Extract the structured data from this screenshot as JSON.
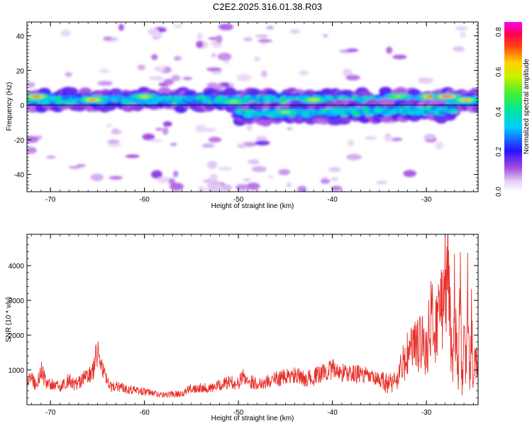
{
  "title": "C2E2.2025.316.01.38.R03",
  "chart_data": [
    {
      "type": "heatmap",
      "panel": "spectrogram",
      "xlabel": "Height of straight line (km)",
      "ylabel": "Frequency (Hz)",
      "xlim": [
        -72.5,
        -24.5
      ],
      "ylim": [
        -50,
        48
      ],
      "xticks": [
        -70,
        -60,
        -50,
        -40,
        -30
      ],
      "xtick_labels": [
        "-70",
        "-60",
        "-50",
        "-40",
        "-30"
      ],
      "yticks": [
        -40,
        -20,
        0,
        20,
        40
      ],
      "ytick_labels": [
        "-40",
        "-20",
        "0",
        "20",
        "40"
      ],
      "colorbar": {
        "label": "Normalized spectral amplitude",
        "range": [
          0,
          0.85
        ],
        "ticks": [
          0.0,
          0.2,
          0.4,
          0.6,
          0.8
        ],
        "tick_labels": [
          "0.0",
          "0.2",
          "0.4",
          "0.6",
          "0.8"
        ],
        "colormap": "rainbow (white-violet-blue-cyan-green-yellow-red-magenta)"
      },
      "ridges": [
        {
          "name": "main band",
          "x_start": -72.5,
          "x_end": -24.5,
          "freq_start": 3,
          "freq_end": 3
        },
        {
          "name": "lower branch",
          "x_start": -50,
          "x_end": -27,
          "freq_start": -5,
          "freq_end": -3
        }
      ],
      "peaks": [
        {
          "x": -71.5,
          "freq": 5,
          "amplitude": 0.78
        },
        {
          "x": -65.5,
          "freq": 3,
          "amplitude": 0.72
        },
        {
          "x": -60,
          "freq": 5,
          "amplitude": 0.6
        },
        {
          "x": -50.5,
          "freq": 2,
          "amplitude": 0.55
        },
        {
          "x": -45,
          "freq": -4,
          "amplitude": 0.55
        },
        {
          "x": -42,
          "freq": 3,
          "amplitude": 0.62
        },
        {
          "x": -33,
          "freq": 5,
          "amplitude": 0.55
        },
        {
          "x": -29.5,
          "freq": 5,
          "amplitude": 0.8
        },
        {
          "x": -27.8,
          "freq": 5,
          "amplitude": 0.85
        },
        {
          "x": -25.8,
          "freq": 3,
          "amplitude": 0.7
        }
      ]
    },
    {
      "type": "line",
      "panel": "snr",
      "xlabel": "Height of straight line (km)",
      "ylabel": "SNR (10 * v/v)",
      "xlim": [
        -72.5,
        -24.5
      ],
      "ylim": [
        0,
        4900
      ],
      "xticks": [
        -70,
        -60,
        -50,
        -40,
        -30
      ],
      "xtick_labels": [
        "-70",
        "-60",
        "-50",
        "-40",
        "-30"
      ],
      "yticks": [
        1000,
        2000,
        3000,
        4000
      ],
      "ytick_labels": [
        "1000",
        "2000",
        "3000",
        "4000"
      ],
      "series": [
        {
          "name": "SNR",
          "color": "#e8302a",
          "x": [
            -72.5,
            -72,
            -71.5,
            -71,
            -70.5,
            -70,
            -69.5,
            -69,
            -68.5,
            -68,
            -67.5,
            -67,
            -66.5,
            -66,
            -65.5,
            -65,
            -64.5,
            -64,
            -63.5,
            -63,
            -62.5,
            -62,
            -61,
            -60,
            -59,
            -58,
            -57,
            -56,
            -55,
            -54,
            -53,
            -52,
            -51,
            -50,
            -49.5,
            -49,
            -48,
            -47,
            -46,
            -45,
            -44,
            -43,
            -42,
            -41,
            -40,
            -39,
            -38,
            -37,
            -36,
            -35,
            -34,
            -33.5,
            -33,
            -32.5,
            -32,
            -31.5,
            -31,
            -30.5,
            -30,
            -29.5,
            -29,
            -28.5,
            -28,
            -27.8,
            -27.6,
            -27.4,
            -27.2,
            -27,
            -26.8,
            -26.6,
            -26.4,
            -26.2,
            -26,
            -25.8,
            -25.6,
            -25.4,
            -25.2,
            -25,
            -24.8,
            -24.5
          ],
          "values": [
            700,
            850,
            550,
            1100,
            700,
            600,
            650,
            500,
            650,
            800,
            600,
            700,
            800,
            900,
            1000,
            1650,
            1200,
            700,
            500,
            600,
            550,
            500,
            450,
            400,
            350,
            300,
            330,
            350,
            500,
            550,
            500,
            600,
            700,
            650,
            900,
            750,
            650,
            700,
            800,
            850,
            900,
            800,
            850,
            1000,
            1100,
            1000,
            950,
            950,
            850,
            750,
            700,
            750,
            900,
            1300,
            1600,
            1900,
            1800,
            2200,
            1700,
            2800,
            2500,
            3200,
            3800,
            4900,
            4300,
            2100,
            800,
            3400,
            1900,
            900,
            3600,
            500,
            2300,
            1200,
            3500,
            500,
            2800,
            400,
            1600,
            1200
          ]
        }
      ]
    }
  ]
}
